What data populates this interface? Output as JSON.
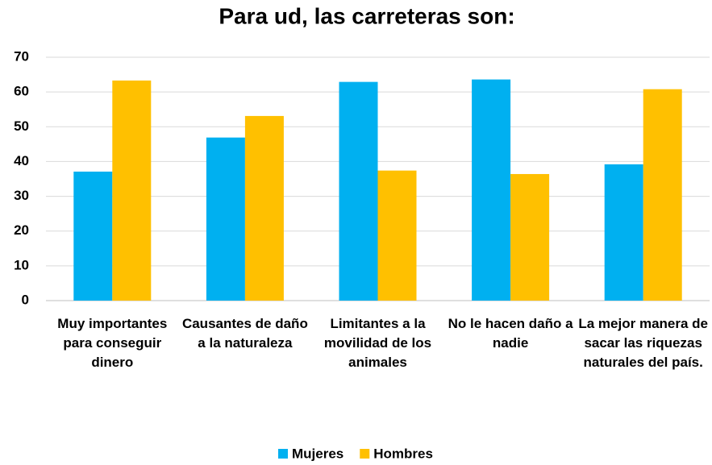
{
  "chart_data": {
    "type": "bar",
    "title": "Para ud, las carreteras son:",
    "categories": [
      "Muy importantes para conseguir dinero",
      "Causantes de daño a la naturaleza",
      "Limitantes a la movilidad de los animales",
      "No le hacen daño a nadie",
      "La mejor manera de sacar las riquezas naturales del país."
    ],
    "series": [
      {
        "name": "Mujeres",
        "color": "#00b0f0",
        "values": [
          37.1,
          46.9,
          62.9,
          63.6,
          39.2
        ]
      },
      {
        "name": "Hombres",
        "color": "#ffc000",
        "values": [
          63.3,
          53.1,
          37.4,
          36.4,
          60.8
        ]
      }
    ],
    "ylim": [
      0,
      70
    ],
    "yticks": [
      0,
      10,
      20,
      30,
      40,
      50,
      60,
      70
    ],
    "grid": true,
    "legend": "bottom"
  }
}
